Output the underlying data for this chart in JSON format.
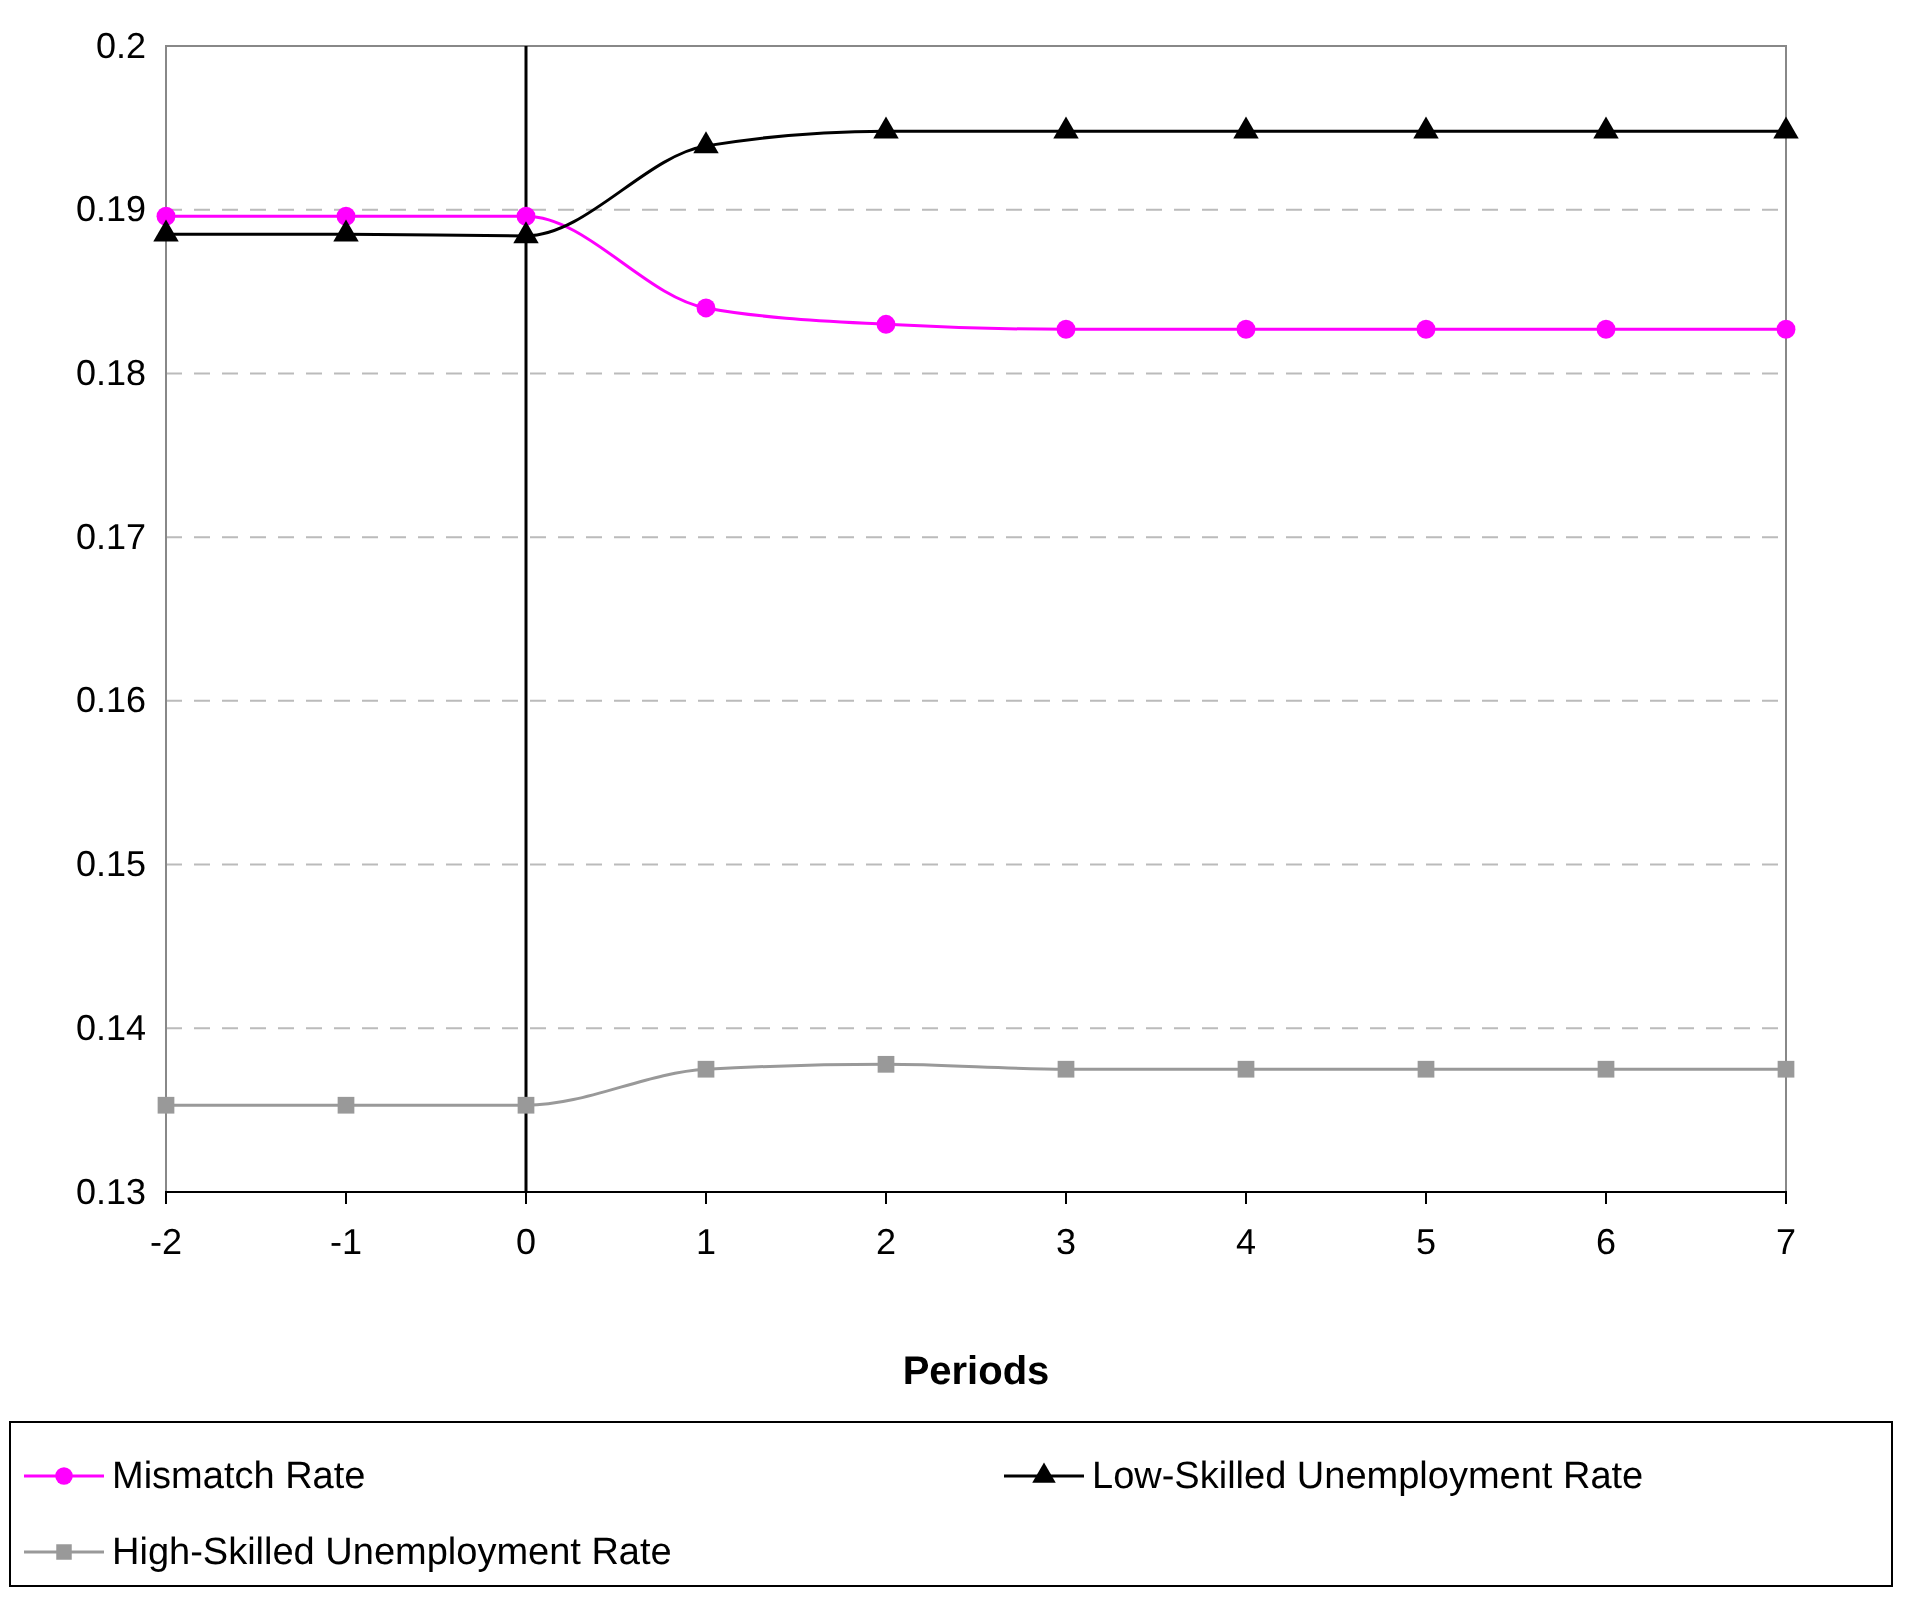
{
  "chart_data": {
    "type": "line",
    "xlabel": "Periods",
    "x": [
      -2,
      -1,
      0,
      1,
      2,
      3,
      4,
      5,
      6,
      7
    ],
    "xlim": [
      -2,
      7
    ],
    "xticks": [
      -2,
      -1,
      0,
      1,
      2,
      3,
      4,
      5,
      6,
      7
    ],
    "ylim": [
      0.13,
      0.2
    ],
    "yticks": [
      0.13,
      0.14,
      0.15,
      0.16,
      0.17,
      0.18,
      0.19,
      0.2
    ],
    "grid": "y",
    "legend": "bottom",
    "ref_lines": [
      {
        "axis": "x",
        "value": 0,
        "color": "#000000"
      }
    ],
    "series": [
      {
        "name": "Mismatch Rate",
        "color": "#ff00ff",
        "marker": "circle",
        "values": [
          0.1896,
          0.1896,
          0.1896,
          0.184,
          0.183,
          0.1827,
          0.1827,
          0.1827,
          0.1827,
          0.1827
        ]
      },
      {
        "name": "Low-Skilled Unemployment Rate",
        "color": "#000000",
        "marker": "triangle",
        "values": [
          0.1885,
          0.1885,
          0.1884,
          0.1939,
          0.1948,
          0.1948,
          0.1948,
          0.1948,
          0.1948,
          0.1948
        ]
      },
      {
        "name": "High-Skilled Unemployment Rate",
        "color": "#999999",
        "marker": "square",
        "values": [
          0.1353,
          0.1353,
          0.1353,
          0.1375,
          0.1378,
          0.1375,
          0.1375,
          0.1375,
          0.1375,
          0.1375
        ]
      }
    ]
  }
}
